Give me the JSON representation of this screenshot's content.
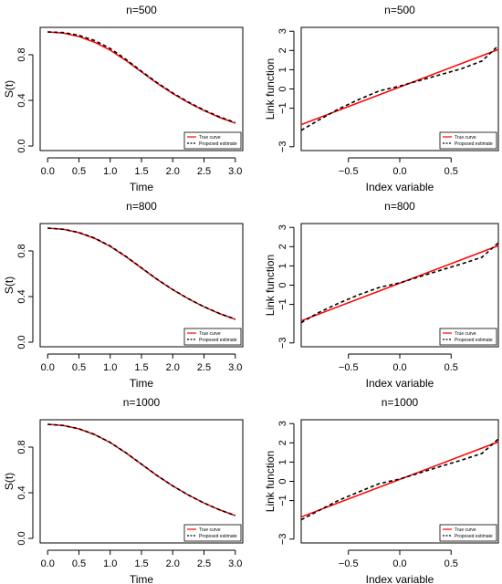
{
  "legend_labels": {
    "true": "True curve",
    "est": "Proposed estimate"
  },
  "colors": {
    "true_curve": "#ff0000",
    "estimate": "#000000"
  },
  "chart_data": [
    {
      "type": "line",
      "title": "n=500",
      "xlabel": "Time",
      "ylabel": "S(t)",
      "xlim": [
        -0.12,
        3.12
      ],
      "ylim": [
        -0.04,
        1.04
      ],
      "xticks": [
        0.0,
        0.5,
        1.0,
        1.5,
        2.0,
        2.5,
        3.0
      ],
      "yticks": [
        0.0,
        0.4,
        0.8
      ],
      "legend_position": "bottom-right",
      "series": [
        {
          "name": "True curve",
          "style": "solid",
          "color": "#ff0000",
          "x": [
            0,
            0.25,
            0.5,
            0.75,
            1,
            1.25,
            1.5,
            1.75,
            2,
            2.25,
            2.5,
            2.75,
            3
          ],
          "y": [
            1.0,
            0.99,
            0.96,
            0.91,
            0.84,
            0.75,
            0.65,
            0.55,
            0.46,
            0.38,
            0.31,
            0.25,
            0.2
          ]
        },
        {
          "name": "Proposed estimate",
          "style": "dashed",
          "color": "#000000",
          "x": [
            0,
            0.25,
            0.5,
            0.75,
            1,
            1.25,
            1.5,
            1.75,
            2,
            2.25,
            2.5,
            2.75,
            3
          ],
          "y": [
            1.0,
            0.995,
            0.97,
            0.925,
            0.855,
            0.76,
            0.655,
            0.555,
            0.465,
            0.385,
            0.315,
            0.255,
            0.205
          ]
        }
      ]
    },
    {
      "type": "line",
      "title": "n=500",
      "xlabel": "Index variable",
      "ylabel": "Link function",
      "xlim": [
        -0.96,
        0.96
      ],
      "ylim": [
        -3.2,
        3.2
      ],
      "xticks": [
        -0.5,
        0.0,
        0.5
      ],
      "xtick_labels": [
        "−0.5",
        "0.0",
        "0.5"
      ],
      "yticks": [
        -3,
        -1,
        0,
        1,
        2,
        3
      ],
      "ytick_labels": [
        "−3",
        "−1",
        "0",
        "1",
        "2",
        "3"
      ],
      "legend_position": "bottom-right",
      "series": [
        {
          "name": "True curve",
          "style": "solid",
          "color": "#ff0000",
          "x": [
            -0.96,
            0.96
          ],
          "y": [
            -1.85,
            2.05
          ]
        },
        {
          "name": "Proposed estimate",
          "style": "dashed",
          "color": "#000000",
          "x": [
            -0.96,
            -0.8,
            -0.6,
            -0.4,
            -0.2,
            0,
            0.2,
            0.4,
            0.6,
            0.8,
            0.96
          ],
          "y": [
            -2.15,
            -1.65,
            -1.05,
            -0.55,
            -0.1,
            0.15,
            0.45,
            0.75,
            1.05,
            1.45,
            2.25
          ]
        }
      ]
    },
    {
      "type": "line",
      "title": "n=800",
      "xlabel": "Time",
      "ylabel": "S(t)",
      "xlim": [
        -0.12,
        3.12
      ],
      "ylim": [
        -0.04,
        1.04
      ],
      "xticks": [
        0.0,
        0.5,
        1.0,
        1.5,
        2.0,
        2.5,
        3.0
      ],
      "yticks": [
        0.0,
        0.4,
        0.8
      ],
      "legend_position": "bottom-right",
      "series": [
        {
          "name": "True curve",
          "style": "solid",
          "color": "#ff0000",
          "x": [
            0,
            0.25,
            0.5,
            0.75,
            1,
            1.25,
            1.5,
            1.75,
            2,
            2.25,
            2.5,
            2.75,
            3
          ],
          "y": [
            1.0,
            0.99,
            0.96,
            0.91,
            0.84,
            0.75,
            0.65,
            0.55,
            0.46,
            0.38,
            0.31,
            0.25,
            0.2
          ]
        },
        {
          "name": "Proposed estimate",
          "style": "dashed",
          "color": "#000000",
          "x": [
            0,
            0.25,
            0.5,
            0.75,
            1,
            1.25,
            1.5,
            1.75,
            2,
            2.25,
            2.5,
            2.75,
            3
          ],
          "y": [
            1.0,
            0.99,
            0.962,
            0.913,
            0.843,
            0.753,
            0.652,
            0.552,
            0.461,
            0.381,
            0.311,
            0.251,
            0.202
          ]
        }
      ]
    },
    {
      "type": "line",
      "title": "n=800",
      "xlabel": "Index variable",
      "ylabel": "Link function",
      "xlim": [
        -0.96,
        0.96
      ],
      "ylim": [
        -3.2,
        3.2
      ],
      "xticks": [
        -0.5,
        0.0,
        0.5
      ],
      "xtick_labels": [
        "−0.5",
        "0.0",
        "0.5"
      ],
      "yticks": [
        -3,
        -1,
        0,
        1,
        2,
        3
      ],
      "ytick_labels": [
        "−3",
        "−1",
        "0",
        "1",
        "2",
        "3"
      ],
      "legend_position": "bottom-right",
      "series": [
        {
          "name": "True curve",
          "style": "solid",
          "color": "#ff0000",
          "x": [
            -0.96,
            0.96
          ],
          "y": [
            -1.85,
            2.05
          ]
        },
        {
          "name": "Proposed estimate",
          "style": "dashed",
          "color": "#000000",
          "x": [
            -0.96,
            -0.8,
            -0.6,
            -0.4,
            -0.2,
            0,
            0.2,
            0.4,
            0.6,
            0.8,
            0.96
          ],
          "y": [
            -1.95,
            -1.45,
            -0.95,
            -0.5,
            -0.12,
            0.12,
            0.45,
            0.78,
            1.1,
            1.45,
            2.2
          ]
        }
      ]
    },
    {
      "type": "line",
      "title": "n=1000",
      "xlabel": "Time",
      "ylabel": "S(t)",
      "xlim": [
        -0.12,
        3.12
      ],
      "ylim": [
        -0.04,
        1.04
      ],
      "xticks": [
        0.0,
        0.5,
        1.0,
        1.5,
        2.0,
        2.5,
        3.0
      ],
      "yticks": [
        0.0,
        0.4,
        0.8
      ],
      "legend_position": "bottom-right",
      "series": [
        {
          "name": "True curve",
          "style": "solid",
          "color": "#ff0000",
          "x": [
            0,
            0.25,
            0.5,
            0.75,
            1,
            1.25,
            1.5,
            1.75,
            2,
            2.25,
            2.5,
            2.75,
            3
          ],
          "y": [
            1.0,
            0.99,
            0.96,
            0.91,
            0.84,
            0.75,
            0.65,
            0.55,
            0.46,
            0.38,
            0.31,
            0.25,
            0.2
          ]
        },
        {
          "name": "Proposed estimate",
          "style": "dashed",
          "color": "#000000",
          "x": [
            0,
            0.25,
            0.5,
            0.75,
            1,
            1.25,
            1.5,
            1.75,
            2,
            2.25,
            2.5,
            2.75,
            3
          ],
          "y": [
            1.0,
            0.99,
            0.961,
            0.911,
            0.841,
            0.751,
            0.651,
            0.551,
            0.46,
            0.38,
            0.31,
            0.25,
            0.2
          ]
        }
      ]
    },
    {
      "type": "line",
      "title": "n=1000",
      "xlabel": "Index variable",
      "ylabel": "Link function",
      "xlim": [
        -0.96,
        0.96
      ],
      "ylim": [
        -3.2,
        3.2
      ],
      "xticks": [
        -0.5,
        0.0,
        0.5
      ],
      "xtick_labels": [
        "−0.5",
        "0.0",
        "0.5"
      ],
      "yticks": [
        -3,
        -1,
        0,
        1,
        2,
        3
      ],
      "ytick_labels": [
        "−3",
        "−1",
        "0",
        "1",
        "2",
        "3"
      ],
      "legend_position": "bottom-right",
      "series": [
        {
          "name": "True curve",
          "style": "solid",
          "color": "#ff0000",
          "x": [
            -0.96,
            0.96
          ],
          "y": [
            -1.85,
            2.05
          ]
        },
        {
          "name": "Proposed estimate",
          "style": "dashed",
          "color": "#000000",
          "x": [
            -0.96,
            -0.8,
            -0.6,
            -0.4,
            -0.2,
            0,
            0.2,
            0.4,
            0.6,
            0.8,
            0.96
          ],
          "y": [
            -2.0,
            -1.55,
            -1.0,
            -0.55,
            -0.12,
            0.12,
            0.45,
            0.78,
            1.1,
            1.45,
            2.2
          ]
        }
      ]
    }
  ]
}
